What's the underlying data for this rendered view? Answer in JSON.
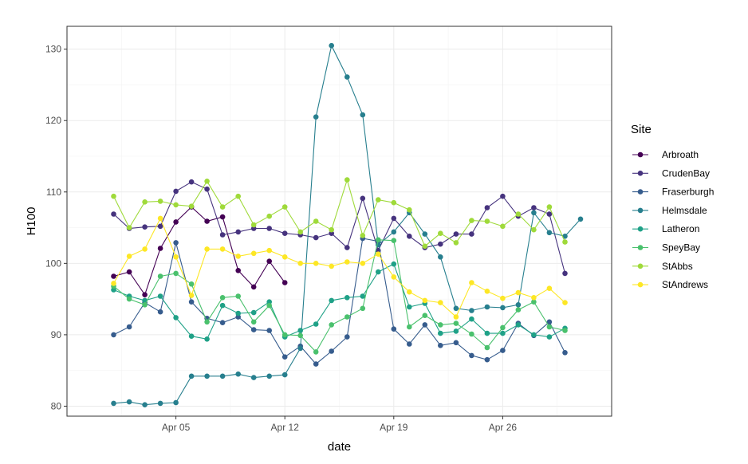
{
  "chart_data": {
    "type": "line",
    "xlabel": "date",
    "ylabel": "H100",
    "x_axis": {
      "type": "date",
      "range": [
        "2021-03-29",
        "2021-05-03"
      ],
      "ticks": [
        {
          "date": "2021-04-05",
          "label": "Apr 05"
        },
        {
          "date": "2021-04-12",
          "label": "Apr 12"
        },
        {
          "date": "2021-04-19",
          "label": "Apr 19"
        },
        {
          "date": "2021-04-26",
          "label": "Apr 26"
        }
      ]
    },
    "y_axis": {
      "range": [
        78.6,
        133.2
      ],
      "ticks": [
        80,
        90,
        100,
        110,
        120,
        130
      ]
    },
    "grid": true,
    "legend": {
      "title": "Site",
      "position": "right"
    },
    "x": [
      "2021-04-01",
      "2021-04-02",
      "2021-04-03",
      "2021-04-04",
      "2021-04-05",
      "2021-04-06",
      "2021-04-07",
      "2021-04-08",
      "2021-04-09",
      "2021-04-10",
      "2021-04-11",
      "2021-04-12",
      "2021-04-13",
      "2021-04-14",
      "2021-04-15",
      "2021-04-16",
      "2021-04-17",
      "2021-04-18",
      "2021-04-19",
      "2021-04-20",
      "2021-04-21",
      "2021-04-22",
      "2021-04-23",
      "2021-04-24",
      "2021-04-25",
      "2021-04-26",
      "2021-04-27",
      "2021-04-28",
      "2021-04-29",
      "2021-04-30",
      "2021-05-01"
    ],
    "series": [
      {
        "name": "Arbroath",
        "color": "#440154",
        "values": [
          98.2,
          98.8,
          95.6,
          102.1,
          105.8,
          107.9,
          105.9,
          106.5,
          99.0,
          96.7,
          100.3,
          97.3,
          null,
          null,
          null,
          null,
          null,
          null,
          null,
          null,
          null,
          null,
          null,
          null,
          null,
          null,
          null,
          null,
          null,
          null,
          null
        ]
      },
      {
        "name": "CrudenBay",
        "color": "#46337E",
        "values": [
          106.9,
          104.9,
          105.1,
          105.2,
          110.1,
          111.4,
          110.4,
          104.0,
          104.4,
          104.9,
          104.9,
          104.2,
          104.0,
          103.6,
          104.2,
          102.2,
          109.1,
          101.8,
          106.3,
          103.8,
          102.2,
          102.7,
          104.1,
          104.1,
          107.8,
          109.4,
          106.6,
          107.8,
          106.9,
          98.6,
          null
        ]
      },
      {
        "name": "Fraserburgh",
        "color": "#365C8D",
        "values": [
          90.0,
          91.1,
          94.5,
          93.2,
          102.9,
          94.6,
          92.3,
          91.7,
          92.5,
          90.7,
          90.6,
          86.9,
          88.4,
          85.9,
          87.7,
          89.7,
          103.5,
          103.1,
          90.8,
          88.7,
          91.4,
          88.5,
          88.9,
          87.1,
          86.5,
          87.8,
          91.6,
          89.9,
          91.8,
          87.5,
          null
        ]
      },
      {
        "name": "Helmsdale",
        "color": "#277F8E",
        "values": [
          80.4,
          80.6,
          80.2,
          80.4,
          80.5,
          84.2,
          84.2,
          84.2,
          84.5,
          84.0,
          84.2,
          84.4,
          88.1,
          120.5,
          130.5,
          126.1,
          120.8,
          102.6,
          104.4,
          107.1,
          104.1,
          100.9,
          93.7,
          93.4,
          93.9,
          93.8,
          94.2,
          107.1,
          104.3,
          103.8,
          106.2
        ]
      },
      {
        "name": "Latheron",
        "color": "#1FA187",
        "values": [
          96.3,
          95.4,
          94.8,
          95.4,
          92.4,
          89.8,
          89.4,
          94.1,
          93.0,
          93.1,
          94.6,
          89.7,
          90.6,
          91.5,
          94.8,
          95.2,
          95.4,
          98.8,
          99.9,
          93.9,
          94.4,
          90.2,
          90.5,
          92.2,
          90.2,
          90.2,
          91.4,
          90.0,
          89.7,
          90.9,
          null
        ]
      },
      {
        "name": "SpeyBay",
        "color": "#4AC16D",
        "values": [
          96.8,
          95.0,
          94.2,
          98.2,
          98.6,
          97.1,
          91.8,
          95.2,
          95.4,
          91.8,
          94.1,
          90.0,
          89.9,
          87.6,
          91.4,
          92.5,
          93.7,
          103.3,
          103.2,
          91.1,
          92.7,
          91.4,
          91.6,
          90.1,
          88.2,
          91.0,
          93.5,
          94.6,
          91.1,
          90.6,
          null
        ]
      },
      {
        "name": "StAbbs",
        "color": "#9FDA3A",
        "values": [
          109.4,
          105.0,
          108.6,
          108.7,
          108.2,
          108.0,
          111.5,
          107.9,
          109.4,
          105.4,
          106.6,
          107.9,
          104.4,
          105.9,
          104.7,
          111.7,
          103.9,
          108.9,
          108.5,
          107.5,
          102.4,
          104.2,
          102.9,
          106.0,
          105.9,
          105.2,
          106.9,
          104.7,
          107.9,
          103.0,
          null
        ]
      },
      {
        "name": "StAndrews",
        "color": "#FDE725",
        "values": [
          97.2,
          101.0,
          102.0,
          106.3,
          100.9,
          95.5,
          102.0,
          102.0,
          101.0,
          101.4,
          101.8,
          100.9,
          100.0,
          100.0,
          99.6,
          100.2,
          100.0,
          101.3,
          98.1,
          96.0,
          94.8,
          94.5,
          92.5,
          97.3,
          96.1,
          95.1,
          95.9,
          95.2,
          96.5,
          94.5,
          null
        ]
      }
    ]
  }
}
